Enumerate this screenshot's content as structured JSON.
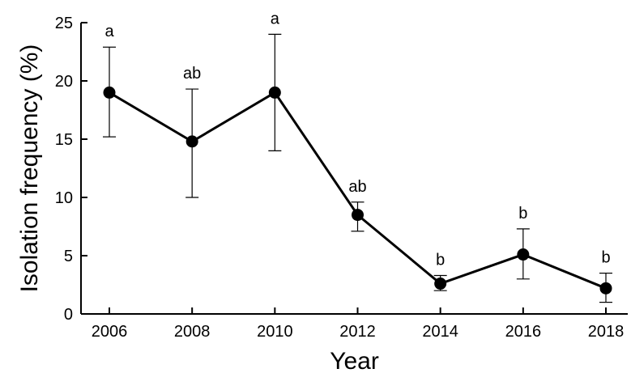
{
  "chart_data": {
    "type": "line",
    "xlabel": "Year",
    "ylabel": "Isolation frequency (%)",
    "x": [
      2006,
      2008,
      2010,
      2012,
      2014,
      2016,
      2018
    ],
    "x_ticks": [
      "2006",
      "2008",
      "2010",
      "2012",
      "2014",
      "2016",
      "2018"
    ],
    "y_ticks": [
      "0",
      "5",
      "10",
      "15",
      "20",
      "25"
    ],
    "ylim": [
      0,
      25
    ],
    "grid": false,
    "series": [
      {
        "values": [
          19.0,
          14.8,
          19.0,
          8.5,
          2.6,
          5.1,
          2.2
        ],
        "err_upper": [
          22.9,
          19.3,
          24.0,
          9.6,
          3.3,
          7.3,
          3.5
        ],
        "err_lower": [
          15.2,
          10.0,
          14.0,
          7.1,
          2.0,
          3.0,
          1.0
        ],
        "significance": [
          "a",
          "ab",
          "a",
          "ab",
          "b",
          "b",
          "b"
        ]
      }
    ]
  }
}
